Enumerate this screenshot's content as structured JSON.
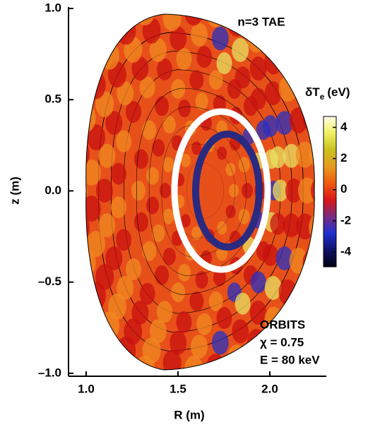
{
  "chart_data": {
    "type": "contour",
    "annotation": "n=3 TAE",
    "xlabel": "R (m)",
    "ylabel": "z (m)",
    "xlim": [
      0.904,
      2.3
    ],
    "ylim": [
      -1.016,
      1.0
    ],
    "xticks": [
      {
        "value": 1,
        "label": "1.0"
      },
      {
        "value": 1.5,
        "label": "1.5"
      },
      {
        "value": 2,
        "label": "2.0"
      }
    ],
    "yticks": [
      {
        "value": 1,
        "label": "1.0"
      },
      {
        "value": 0.5,
        "label": "0.5"
      },
      {
        "value": 0,
        "label": "0.0"
      },
      {
        "value": -0.5,
        "label": "–0.5"
      },
      {
        "value": -1,
        "label": "–1.0"
      }
    ],
    "colorbar": {
      "label": {
        "main": "δT",
        "sub": "e",
        "unit": "(eV)"
      },
      "clim": [
        -4.95,
        4.7
      ],
      "ticks": [
        4,
        2,
        0,
        -2,
        -4
      ],
      "colors": [
        "#000010",
        "#10106a",
        "#2030d0",
        "#7a2a80",
        "#d81818",
        "#f05a10",
        "#e89a20",
        "#c8c020",
        "#f0f060",
        "#ffffe8"
      ]
    },
    "legend": {
      "title": "ORBITS",
      "lines": [
        "χ = 0.75",
        "E = 80 keV"
      ]
    }
  }
}
